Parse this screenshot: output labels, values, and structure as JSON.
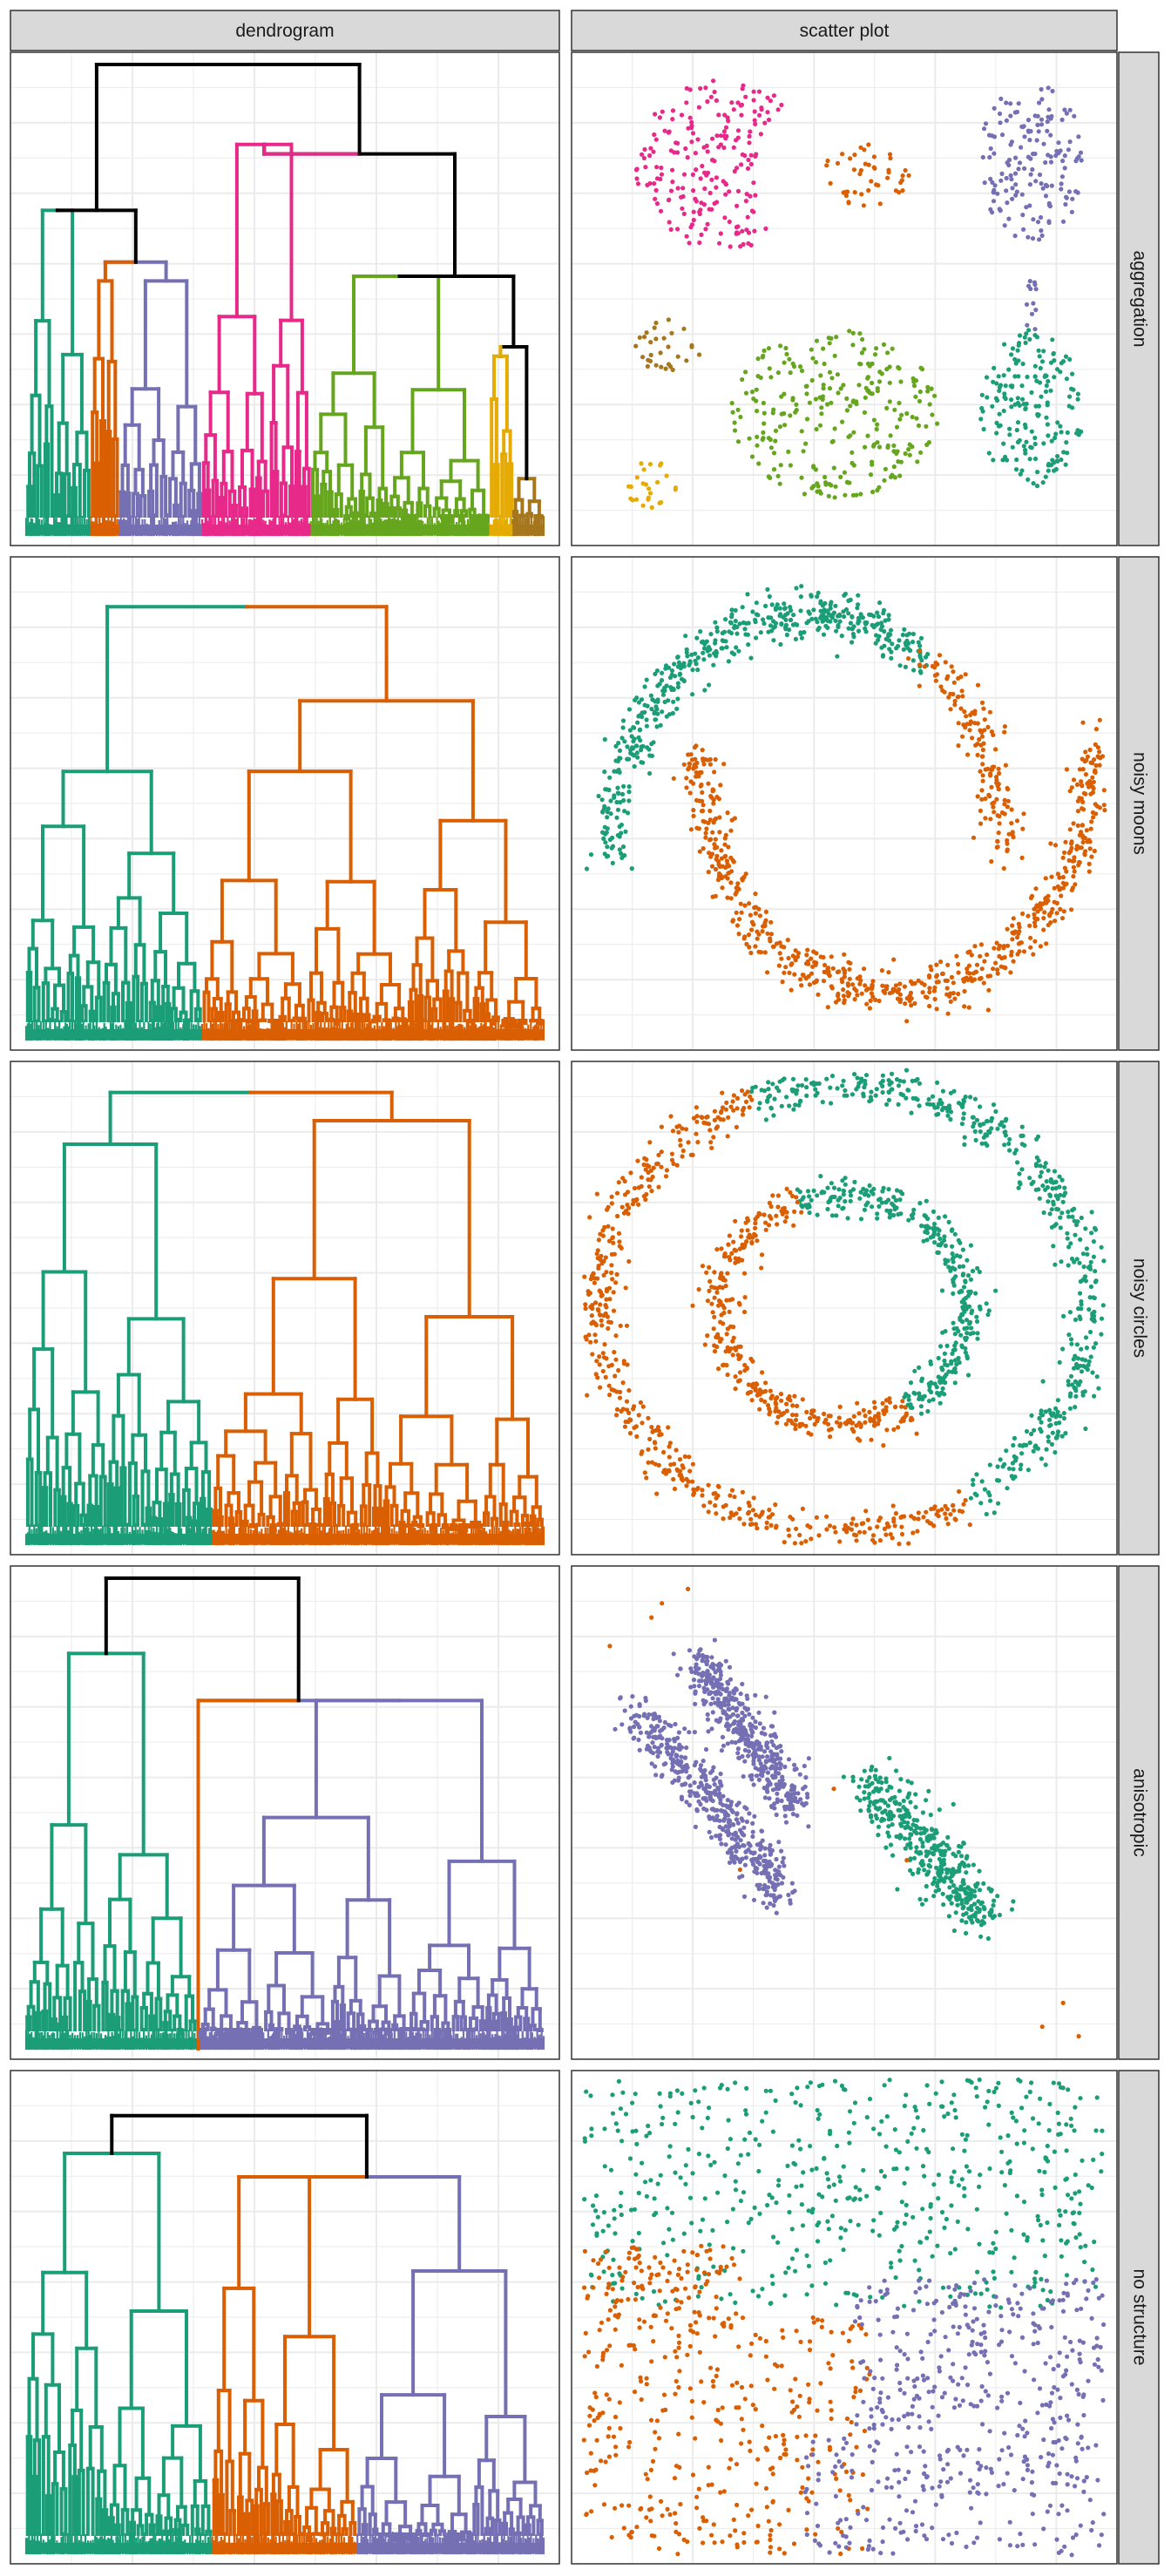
{
  "facet_columns": [
    "dendrogram",
    "scatter plot"
  ],
  "facet_rows": [
    "aggregation",
    "noisy moons",
    "noisy circles",
    "anisotropic",
    "no structure"
  ],
  "colors": {
    "teal": "#1b9e77",
    "orange": "#d95f02",
    "purple": "#7570b3",
    "pink": "#e7298a",
    "green": "#66a61e",
    "gold": "#e6ab02",
    "brown": "#a6761d",
    "black": "#000000",
    "strip_bg": "#d9d9d9",
    "grid": "#ebebeb",
    "panel_border": "#333333"
  },
  "chart_data": [
    {
      "type": "dendrogram",
      "facet_row": "aggregation",
      "facet_col": "dendrogram",
      "cluster_colors_left_to_right": [
        "teal",
        "orange",
        "purple",
        "pink",
        "green",
        "gold",
        "brown"
      ],
      "cluster_leaf_share": [
        0.125,
        0.055,
        0.16,
        0.21,
        0.345,
        0.045,
        0.06
      ],
      "merge_heights": {
        "root": 1.0,
        "teal_orange_purple": 0.69,
        "orange_purple": 0.56,
        "orange_purple_join": 0.54,
        "pink_rest": 0.79,
        "green_gold_brown": 0.55,
        "gold_brown": 0.38
      },
      "black_links": true
    },
    {
      "type": "scatter",
      "facet_row": "aggregation",
      "facet_col": "scatter plot",
      "groups": [
        {
          "color": "pink",
          "shape": "crescent",
          "center": [
            0.27,
            0.22
          ],
          "size": [
            0.34,
            0.36
          ],
          "n": 210
        },
        {
          "color": "orange",
          "shape": "blob",
          "center": [
            0.54,
            0.24
          ],
          "size": [
            0.17,
            0.13
          ],
          "n": 45
        },
        {
          "color": "purple",
          "shape": "blob",
          "center": [
            0.86,
            0.21
          ],
          "size": [
            0.2,
            0.34
          ],
          "n": 160
        },
        {
          "color": "purple",
          "shape": "bridge",
          "center": [
            0.86,
            0.52
          ],
          "size": [
            0.02,
            0.12
          ],
          "n": 12
        },
        {
          "color": "teal",
          "shape": "blob",
          "center": [
            0.86,
            0.73
          ],
          "size": [
            0.2,
            0.33
          ],
          "n": 180
        },
        {
          "color": "brown",
          "shape": "blob",
          "center": [
            0.16,
            0.6
          ],
          "size": [
            0.13,
            0.12
          ],
          "n": 30
        },
        {
          "color": "green",
          "shape": "blob",
          "center": [
            0.48,
            0.74
          ],
          "size": [
            0.4,
            0.36
          ],
          "n": 270
        },
        {
          "color": "gold",
          "shape": "blob",
          "center": [
            0.13,
            0.89
          ],
          "size": [
            0.1,
            0.1
          ],
          "n": 25
        }
      ]
    },
    {
      "type": "dendrogram",
      "facet_row": "noisy moons",
      "facet_col": "dendrogram",
      "cluster_colors_left_to_right": [
        "teal",
        "orange"
      ],
      "cluster_leaf_share": [
        0.34,
        0.66
      ],
      "merge_heights": {
        "root": 0.92,
        "teal": 0.57,
        "orange": 0.72
      },
      "black_links": false
    },
    {
      "type": "scatter",
      "facet_row": "noisy moons",
      "facet_col": "scatter plot",
      "groups": [
        {
          "color": "teal",
          "shape": "upper-moon",
          "n": 500
        },
        {
          "color": "orange",
          "shape": "upper-moon-tail",
          "n": 150
        },
        {
          "color": "orange",
          "shape": "lower-moon",
          "n": 650
        }
      ]
    },
    {
      "type": "dendrogram",
      "facet_row": "noisy circles",
      "facet_col": "dendrogram",
      "cluster_colors_left_to_right": [
        "teal",
        "orange"
      ],
      "cluster_leaf_share": [
        0.36,
        0.64
      ],
      "merge_heights": {
        "root": 0.96,
        "teal": 0.85,
        "orange": 0.9
      },
      "black_links": false
    },
    {
      "type": "scatter",
      "facet_row": "noisy circles",
      "facet_col": "scatter plot",
      "groups": [
        {
          "color": "teal",
          "shape": "outer-ring-right",
          "n": 500
        },
        {
          "color": "orange",
          "shape": "outer-ring-left",
          "n": 500
        },
        {
          "color": "teal",
          "shape": "inner-ring-top-right",
          "n": 330
        },
        {
          "color": "orange",
          "shape": "inner-ring-bottom-left",
          "n": 330
        }
      ]
    },
    {
      "type": "dendrogram",
      "facet_row": "anisotropic",
      "facet_col": "dendrogram",
      "cluster_colors_left_to_right": [
        "teal",
        "orange",
        "purple"
      ],
      "cluster_leaf_share": [
        0.33,
        0.005,
        0.665
      ],
      "merge_heights": {
        "root": 1.0,
        "orange_purple": 0.74,
        "teal": 0.84
      },
      "black_links": true
    },
    {
      "type": "scatter",
      "facet_row": "anisotropic",
      "facet_col": "scatter plot",
      "groups": [
        {
          "color": "purple",
          "shape": "diagonal-band-1",
          "n": 450
        },
        {
          "color": "purple",
          "shape": "diagonal-band-2",
          "n": 450
        },
        {
          "color": "teal",
          "shape": "diagonal-band-3",
          "n": 400
        },
        {
          "color": "orange",
          "shape": "outliers",
          "n": 10
        }
      ]
    },
    {
      "type": "dendrogram",
      "facet_row": "no structure",
      "facet_col": "dendrogram",
      "cluster_colors_left_to_right": [
        "teal",
        "orange",
        "purple"
      ],
      "cluster_leaf_share": [
        0.36,
        0.28,
        0.36
      ],
      "merge_heights": {
        "root": 0.93,
        "orange_purple": 0.8,
        "teal": 0.85
      },
      "black_links": true
    },
    {
      "type": "scatter",
      "facet_row": "no structure",
      "facet_col": "scatter plot",
      "groups": [
        {
          "color": "teal",
          "shape": "uniform-top",
          "n": 550
        },
        {
          "color": "orange",
          "shape": "uniform-bottom-left",
          "n": 450
        },
        {
          "color": "purple",
          "shape": "uniform-bottom-right",
          "n": 500
        }
      ]
    }
  ]
}
